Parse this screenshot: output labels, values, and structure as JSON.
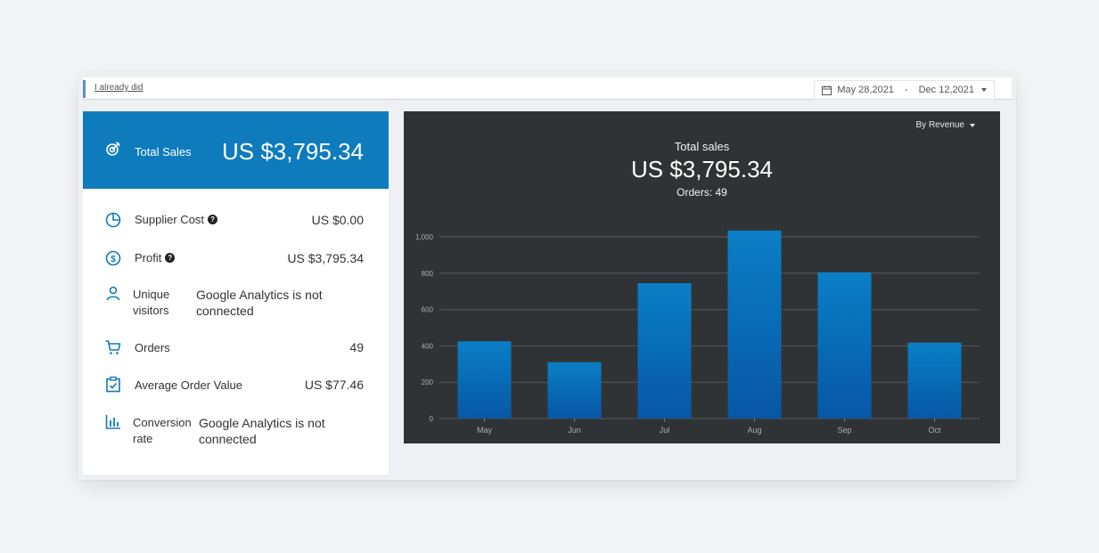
{
  "topbar": {
    "link_text": "I already did",
    "date_start": "May 28,2021",
    "date_separator": "-",
    "date_end": "Dec 12,2021"
  },
  "summary": {
    "total_sales_label": "Total Sales",
    "total_sales_value": "US $3,795.34",
    "metrics": [
      {
        "name": "Supplier Cost",
        "value": "US $0.00",
        "icon": "pie-chart-icon",
        "help": true
      },
      {
        "name": "Profit",
        "value": "US $3,795.34",
        "icon": "dollar-circle-icon",
        "help": true
      },
      {
        "name_line1": "Unique",
        "name_line2": "visitors",
        "note_line1": "Google Analytics is not",
        "note_line2": "connected",
        "icon": "user-icon"
      },
      {
        "name": "Orders",
        "value": "49",
        "icon": "cart-icon"
      },
      {
        "name": "Average Order Value",
        "value": "US $77.46",
        "icon": "clipboard-check-icon"
      },
      {
        "name_line1": "Conversion",
        "name_line2": "rate",
        "note_line1": "Google Analytics is not",
        "note_line2": "connected",
        "icon": "bar-chart-icon"
      }
    ]
  },
  "chart_panel": {
    "dropdown_label": "By Revenue",
    "title": "Total sales",
    "total": "US $3,795.34",
    "orders": "Orders: 49"
  },
  "chart_data": {
    "type": "bar",
    "categories": [
      "May",
      "Jun",
      "Jul",
      "Aug",
      "Sep",
      "Oct"
    ],
    "values": [
      425,
      310,
      745,
      1035,
      805,
      418
    ],
    "yticks": [
      "0",
      "200",
      "400",
      "600",
      "800",
      "1,000"
    ],
    "ylim": [
      0,
      1000
    ],
    "grid": true
  },
  "colors": {
    "accent": "#0e7bbd",
    "chart_bg": "#303335",
    "bar_top": "#0a7fc6",
    "bar_bottom": "#0757a5"
  }
}
